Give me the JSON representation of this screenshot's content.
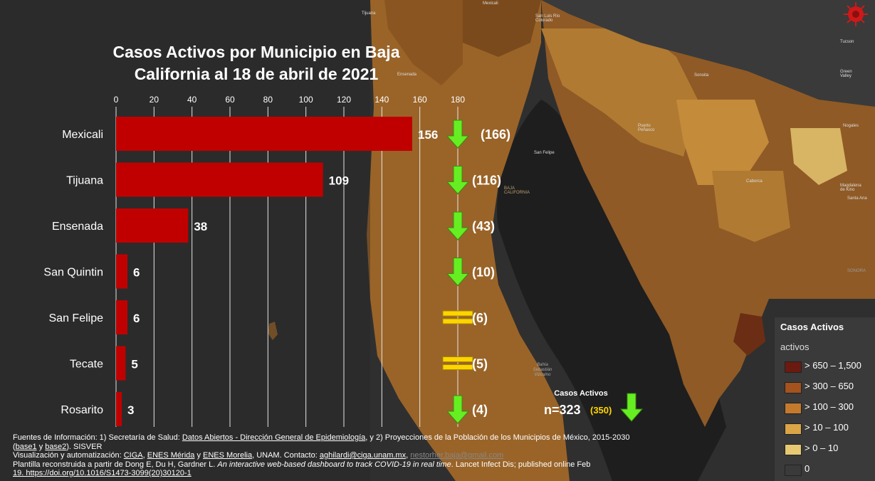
{
  "title": "Casos Activos por Municipio en Baja California al 18 de abril de 2021",
  "chart_data": {
    "type": "bar",
    "orientation": "horizontal",
    "xlim": [
      0,
      180
    ],
    "ticks": [
      "0",
      "20",
      "40",
      "60",
      "80",
      "100",
      "120",
      "140",
      "160",
      "180"
    ],
    "categories": [
      "Mexicali",
      "Tijuana",
      "Ensenada",
      "San Quintin",
      "San Felipe",
      "Tecate",
      "Rosarito"
    ],
    "values": [
      156,
      109,
      38,
      6,
      6,
      5,
      3
    ],
    "previous_labels": [
      "(166)",
      "(116)",
      "(43)",
      "(10)",
      "(6)",
      "(5)",
      "(4)"
    ],
    "trend": [
      "down",
      "down",
      "down",
      "down",
      "equal",
      "equal",
      "down"
    ],
    "bar_color": "#c00000",
    "grid": true
  },
  "total": {
    "label": "Casos Activos",
    "value": "n=323",
    "previous": "(350)",
    "trend": "down"
  },
  "colors": {
    "arrow_down": "#66ee22",
    "equal_sign": "#ffd500",
    "previous_total": "#ffd500"
  },
  "legend": {
    "title": "Casos Activos",
    "subtitle": "activos",
    "items": [
      {
        "label": "> 650 – 1,500",
        "color": "#6b1a10"
      },
      {
        "label": "> 300 – 650",
        "color": "#a4521e"
      },
      {
        "label": "> 100 – 300",
        "color": "#c47a2c"
      },
      {
        "label": "> 10 – 100",
        "color": "#d9a547"
      },
      {
        "label": "> 0 – 10",
        "color": "#e6c972"
      },
      {
        "label": "0",
        "color": "#3a3a3a"
      }
    ]
  },
  "map_labels": [
    "Tijuana",
    "Mexicali",
    "San Luis Río Colorado",
    "Ensenada",
    "Sonoita",
    "Tucson",
    "Green Valley",
    "Puerto Peñasco",
    "San Felipe",
    "BAJA CALIFORNIA",
    "Caborca",
    "Magdalena de Kino",
    "Santa Ana",
    "Nogales",
    "SONORA",
    "Bahía Sebastián Vizcaíno"
  ],
  "footer": {
    "l1_a": "Fuentes de Información: 1) Secretaría de Salud: ",
    "l1_link": "Datos Abiertos - Dirección General de Epidemiología",
    "l1_b": ", y 2) Proyecciones de la Población de los Municipios de México, 2015-2030",
    "l2_a": "(",
    "l2_link1": "base1",
    "l2_b": " y ",
    "l2_link2": "base2",
    "l2_c": "). SISVER",
    "l3_a": " Visualización y automatización: ",
    "l3_ciga": "CIGA",
    "l3_sep1": ", ",
    "l3_merida": "ENES Mérida",
    "l3_sep2": " y ",
    "l3_morelia": "ENES Morelia",
    "l3_b": ", UNAM. Contacto: ",
    "l3_mail1": "aghilardi@ciga.unam.mx",
    "l3_sep3": ", ",
    "l3_mail2": "nestorher.baja@gmail.com",
    "l4_a": " Plantilla reconstruida a partir de Dong E, Du H, Gardner L. ",
    "l4_italic": "An interactive web-based dashboard to track COVID-19 in real time",
    "l4_b": ". Lancet Infect Dis; published online Feb",
    "l5": "19. https://doi.org/10.1016/S1473-3099(20)30120-1"
  }
}
